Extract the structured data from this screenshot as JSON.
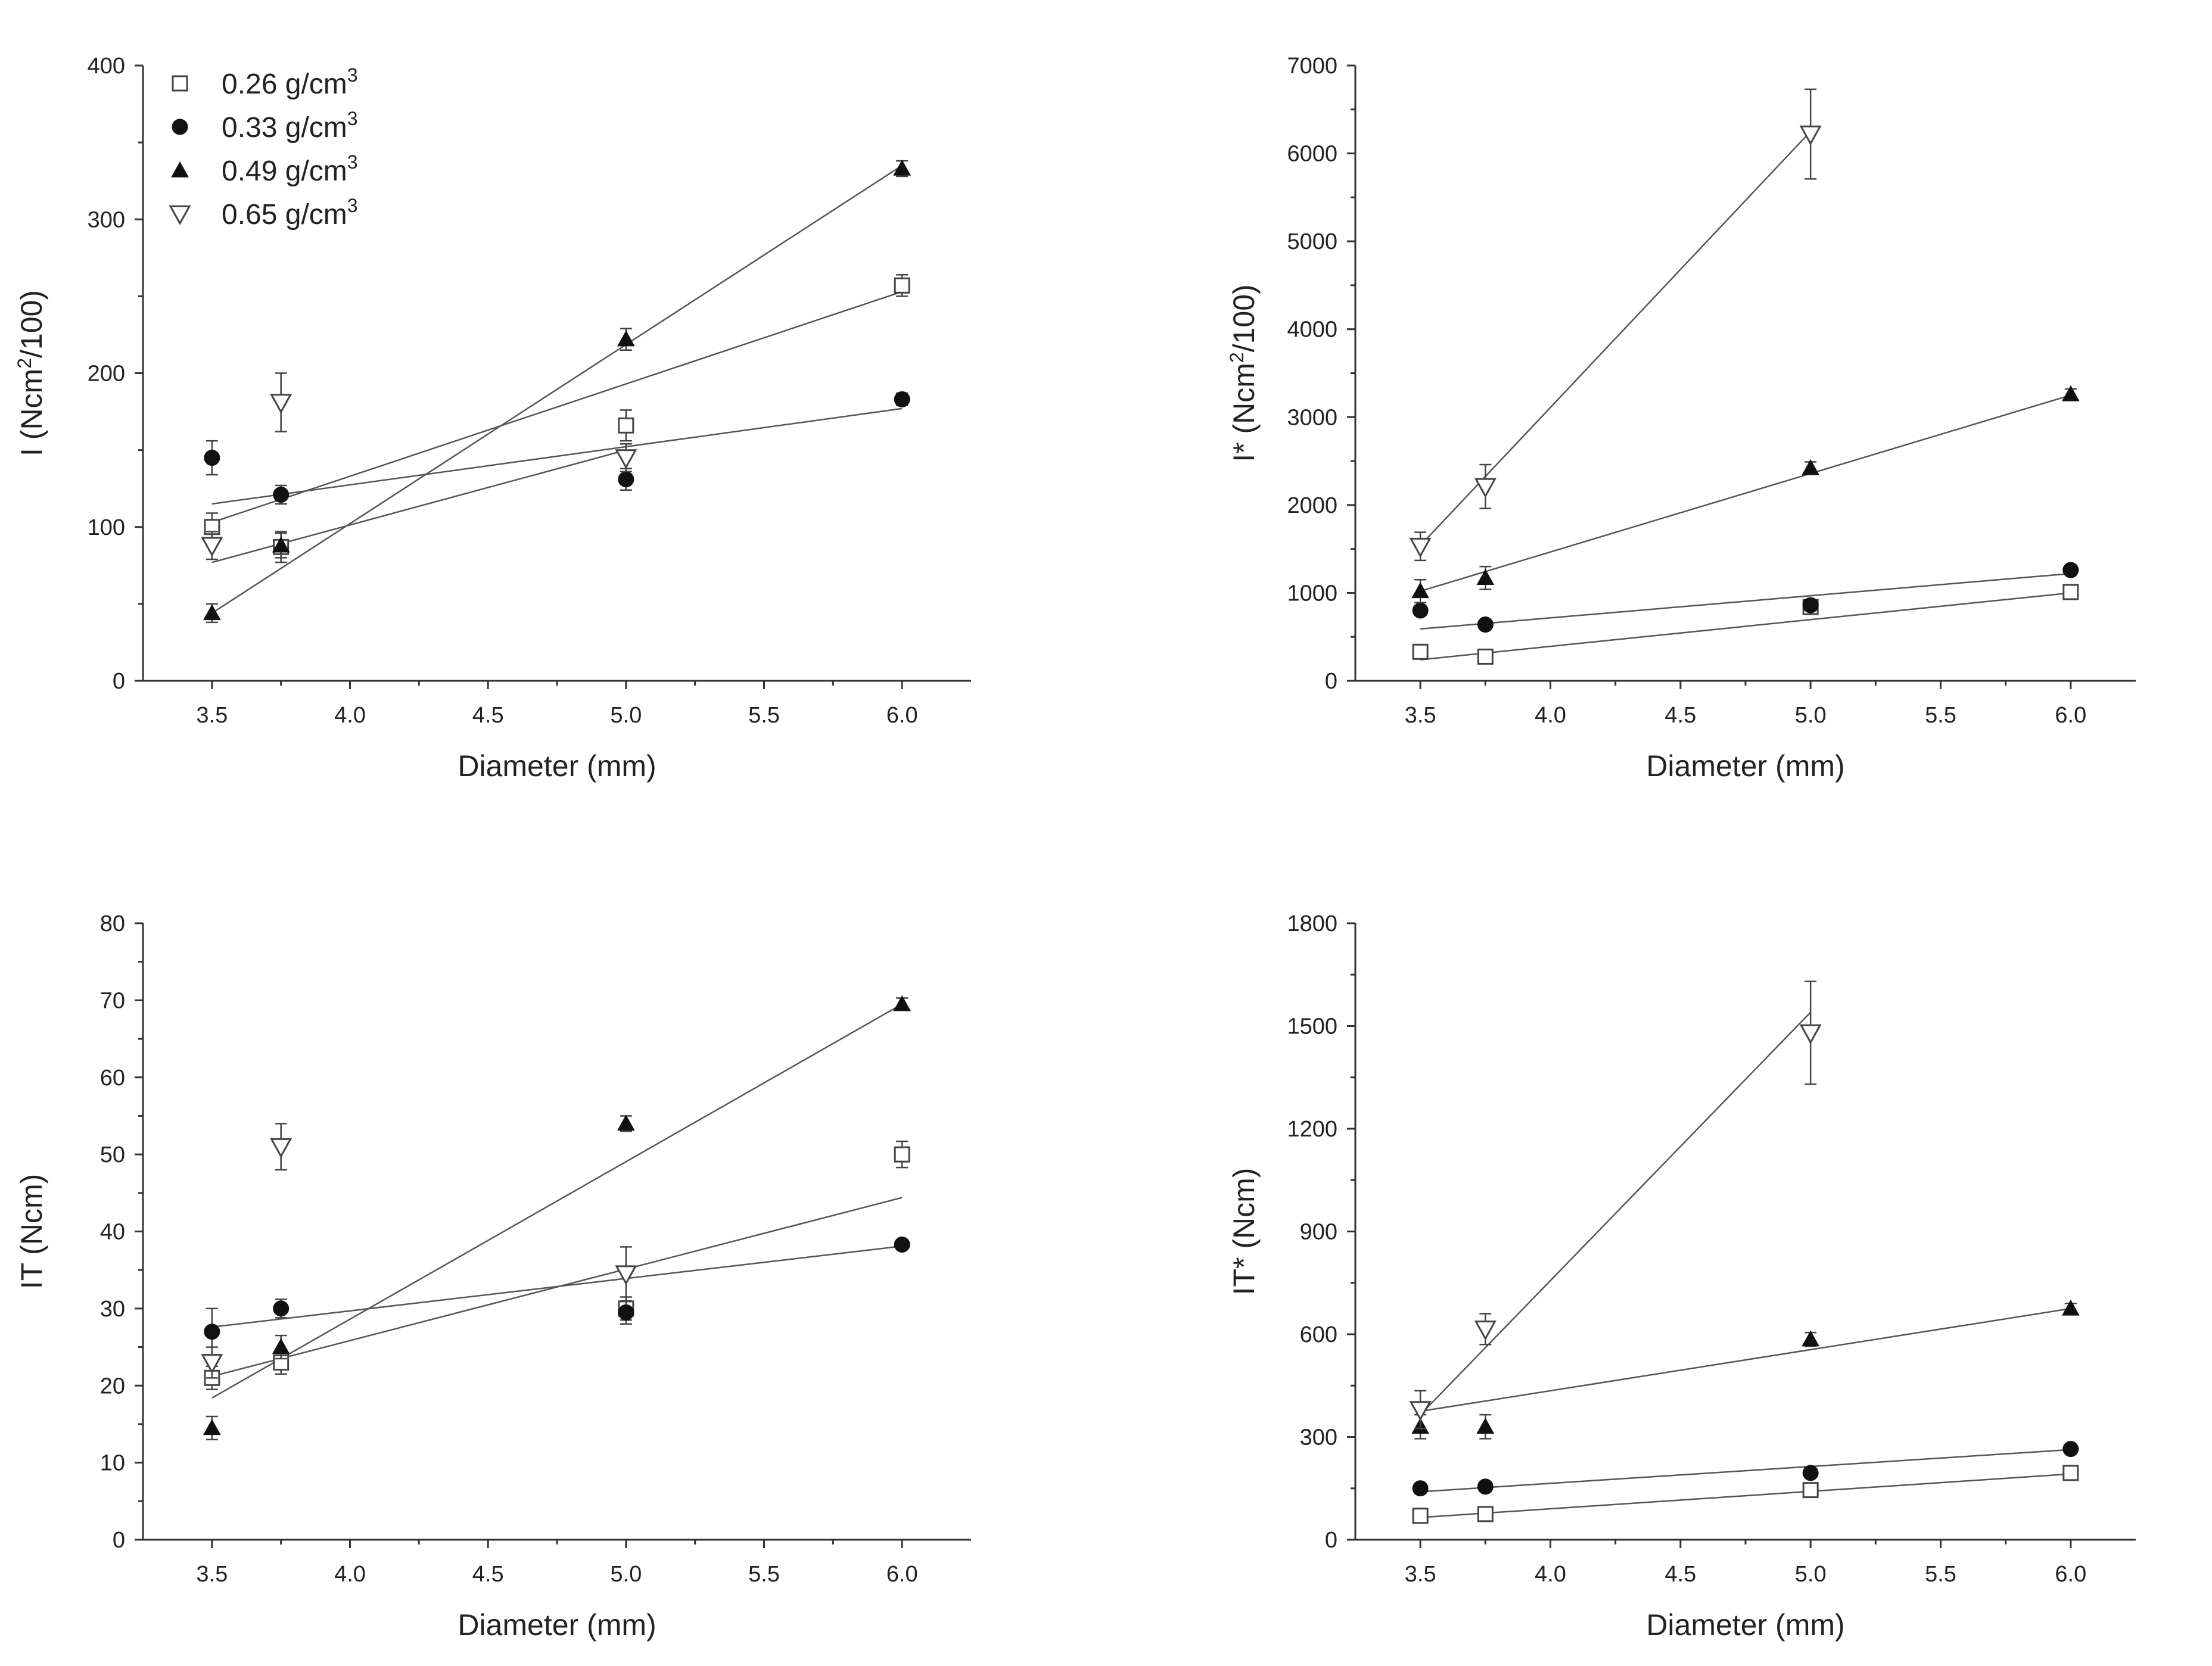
{
  "legend": [
    {
      "label": "0.26 g/cm",
      "sup": "3",
      "marker": "square-open"
    },
    {
      "label": "0.33 g/cm",
      "sup": "3",
      "marker": "circle-filled"
    },
    {
      "label": "0.49 g/cm",
      "sup": "3",
      "marker": "triangle-up-filled"
    },
    {
      "label": "0.65 g/cm",
      "sup": "3",
      "marker": "triangle-down-open"
    }
  ],
  "chart_data": [
    {
      "type": "scatter",
      "id": "I",
      "xlabel": "Diameter (mm)",
      "ylabel": "I (Ncm",
      "ylabel_sup": "2",
      "ylabel_tail": "/100)",
      "xlim": [
        3.25,
        6.25
      ],
      "ylim": [
        0,
        400
      ],
      "xticks": [
        3.5,
        4.0,
        4.5,
        5.0,
        5.5,
        6.0
      ],
      "xtick_labels": [
        "3.5",
        "4.0",
        "4.5",
        "5.0",
        "5.5",
        "6.0"
      ],
      "yticks": [
        0,
        100,
        200,
        300,
        400
      ],
      "ytick_labels": [
        "0",
        "100",
        "200",
        "300",
        "400"
      ],
      "legend_shown": true,
      "series": [
        {
          "name": "0.26 g/cm3",
          "marker": "square-open",
          "x": [
            3.5,
            3.75,
            5.0,
            6.0
          ],
          "y": [
            100,
            87,
            166,
            257
          ],
          "err": [
            9,
            10,
            10,
            7
          ],
          "fit": [
            3.5,
            103,
            6.0,
            253
          ]
        },
        {
          "name": "0.33 g/cm3",
          "marker": "circle-filled",
          "x": [
            3.5,
            3.75,
            5.0,
            6.0
          ],
          "y": [
            145,
            121,
            131,
            183
          ],
          "err": [
            11,
            6,
            7,
            4
          ],
          "fit": [
            3.5,
            115,
            6.0,
            177
          ]
        },
        {
          "name": "0.49 g/cm3",
          "marker": "triangle-up-filled",
          "x": [
            3.5,
            3.75,
            5.0,
            6.0
          ],
          "y": [
            44,
            88,
            222,
            333
          ],
          "err": [
            6,
            8,
            7,
            5
          ],
          "fit": [
            3.5,
            44,
            6.0,
            335
          ]
        },
        {
          "name": "0.65 g/cm3",
          "marker": "triangle-down-open",
          "x": [
            3.5,
            3.75,
            5.0,
            6.0
          ],
          "y": [
            88,
            181,
            145,
            null
          ],
          "err": [
            9,
            19,
            9,
            null
          ],
          "fit": [
            3.5,
            77,
            5.0,
            150
          ]
        }
      ]
    },
    {
      "type": "scatter",
      "id": "I-star",
      "xlabel": "Diameter (mm)",
      "ylabel": "I* (Ncm",
      "ylabel_sup": "2",
      "ylabel_tail": "/100)",
      "xlim": [
        3.25,
        6.25
      ],
      "ylim": [
        0,
        7000
      ],
      "xticks": [
        3.5,
        4.0,
        4.5,
        5.0,
        5.5,
        6.0
      ],
      "xtick_labels": [
        "3.5",
        "4.0",
        "4.5",
        "5.0",
        "5.5",
        "6.0"
      ],
      "yticks": [
        0,
        1000,
        2000,
        3000,
        4000,
        5000,
        6000,
        7000
      ],
      "ytick_labels": [
        "0",
        "1000",
        "2000",
        "3000",
        "4000",
        "5000",
        "6000",
        "7000"
      ],
      "legend_shown": false,
      "series": [
        {
          "name": "0.26 g/cm3",
          "marker": "square-open",
          "x": [
            3.5,
            3.75,
            5.0,
            6.0
          ],
          "y": [
            330,
            275,
            840,
            1010
          ],
          "err": [
            40,
            40,
            50,
            40
          ],
          "fit": [
            3.5,
            240,
            6.0,
            1000
          ]
        },
        {
          "name": "0.33 g/cm3",
          "marker": "circle-filled",
          "x": [
            3.5,
            3.75,
            5.0,
            6.0
          ],
          "y": [
            800,
            640,
            860,
            1260
          ],
          "err": [
            40,
            40,
            40,
            40
          ],
          "fit": [
            3.5,
            590,
            6.0,
            1220
          ]
        },
        {
          "name": "0.49 g/cm3",
          "marker": "triangle-up-filled",
          "x": [
            3.5,
            3.75,
            5.0,
            6.0
          ],
          "y": [
            1020,
            1170,
            2420,
            3260
          ],
          "err": [
            130,
            130,
            70,
            60
          ],
          "fit": [
            3.5,
            1020,
            6.0,
            3250
          ]
        },
        {
          "name": "0.65 g/cm3",
          "marker": "triangle-down-open",
          "x": [
            3.5,
            3.75,
            5.0
          ],
          "y": [
            1530,
            2210,
            6220
          ],
          "err": [
            160,
            250,
            510
          ],
          "fit": [
            3.5,
            1540,
            5.0,
            6250
          ]
        }
      ]
    },
    {
      "type": "scatter",
      "id": "IT",
      "xlabel": "Diameter (mm)",
      "ylabel": "IT (Ncm)",
      "xlim": [
        3.25,
        6.25
      ],
      "ylim": [
        0,
        80
      ],
      "xticks": [
        3.5,
        4.0,
        4.5,
        5.0,
        5.5,
        6.0
      ],
      "xtick_labels": [
        "3.5",
        "4.0",
        "4.5",
        "5.0",
        "5.5",
        "6.0"
      ],
      "yticks": [
        0,
        10,
        20,
        30,
        40,
        50,
        60,
        70,
        80
      ],
      "ytick_labels": [
        "0",
        "10",
        "20",
        "30",
        "40",
        "50",
        "60",
        "70",
        "80"
      ],
      "legend_shown": false,
      "series": [
        {
          "name": "0.26 g/cm3",
          "marker": "square-open",
          "x": [
            3.5,
            3.75,
            5.0,
            6.0
          ],
          "y": [
            21,
            23,
            30,
            50
          ],
          "err": [
            1.5,
            1.5,
            1.5,
            1.7
          ],
          "fit": null
        },
        {
          "name": "0.33 g/cm3",
          "marker": "circle-filled",
          "x": [
            3.5,
            3.75,
            5.0,
            6.0
          ],
          "y": [
            27,
            30,
            29.5,
            38.3
          ],
          "err": [
            3,
            1.2,
            1.5,
            0.5
          ],
          "fit": [
            3.5,
            27.6,
            6.0,
            38.1
          ]
        },
        {
          "name": "0.49 g/cm3",
          "marker": "triangle-up-filled",
          "x": [
            3.5,
            3.75,
            5.0,
            6.0
          ],
          "y": [
            14.5,
            25,
            54,
            69.5
          ],
          "err": [
            1.5,
            1.5,
            1,
            0.8
          ],
          "fit": [
            3.5,
            18.4,
            6.0,
            69.5
          ]
        },
        {
          "name": "0.65 g/cm3",
          "marker": "triangle-down-open",
          "x": [
            3.5,
            3.75,
            5.0
          ],
          "y": [
            23,
            51,
            34.5
          ],
          "err": [
            2,
            3,
            3.5
          ],
          "fit": [
            3.5,
            21.2,
            6.0,
            44.4
          ]
        }
      ]
    },
    {
      "type": "scatter",
      "id": "IT-star",
      "xlabel": "Diameter (mm)",
      "ylabel": "IT* (Ncm)",
      "xlim": [
        3.25,
        6.25
      ],
      "ylim": [
        0,
        1800
      ],
      "xticks": [
        3.5,
        4.0,
        4.5,
        5.0,
        5.5,
        6.0
      ],
      "xtick_labels": [
        "3.5",
        "4.0",
        "4.5",
        "5.0",
        "5.5",
        "6.0"
      ],
      "yticks": [
        0,
        300,
        600,
        900,
        1200,
        1500,
        1800
      ],
      "ytick_labels": [
        "0",
        "300",
        "600",
        "900",
        "1200",
        "1500",
        "1800"
      ],
      "legend_shown": false,
      "series": [
        {
          "name": "0.26 g/cm3",
          "marker": "square-open",
          "x": [
            3.5,
            3.75,
            5.0,
            6.0
          ],
          "y": [
            70,
            75,
            145,
            195
          ],
          "err": [
            10,
            10,
            10,
            10
          ],
          "fit": [
            3.5,
            65,
            6.0,
            192
          ]
        },
        {
          "name": "0.33 g/cm3",
          "marker": "circle-filled",
          "x": [
            3.5,
            3.75,
            5.0,
            6.0
          ],
          "y": [
            150,
            155,
            195,
            265
          ],
          "err": [
            15,
            10,
            10,
            10
          ],
          "fit": [
            3.5,
            140,
            6.0,
            263
          ]
        },
        {
          "name": "0.49 g/cm3",
          "marker": "triangle-up-filled",
          "x": [
            3.5,
            3.75,
            5.0,
            6.0
          ],
          "y": [
            330,
            330,
            585,
            675
          ],
          "err": [
            35,
            35,
            20,
            15
          ],
          "fit": [
            3.5,
            375,
            6.0,
            675
          ]
        },
        {
          "name": "0.65 g/cm3",
          "marker": "triangle-down-open",
          "x": [
            3.5,
            3.75,
            5.0
          ],
          "y": [
            380,
            615,
            1480
          ],
          "err": [
            55,
            45,
            150
          ],
          "fit": [
            3.5,
            365,
            5.0,
            1540
          ]
        }
      ]
    }
  ]
}
